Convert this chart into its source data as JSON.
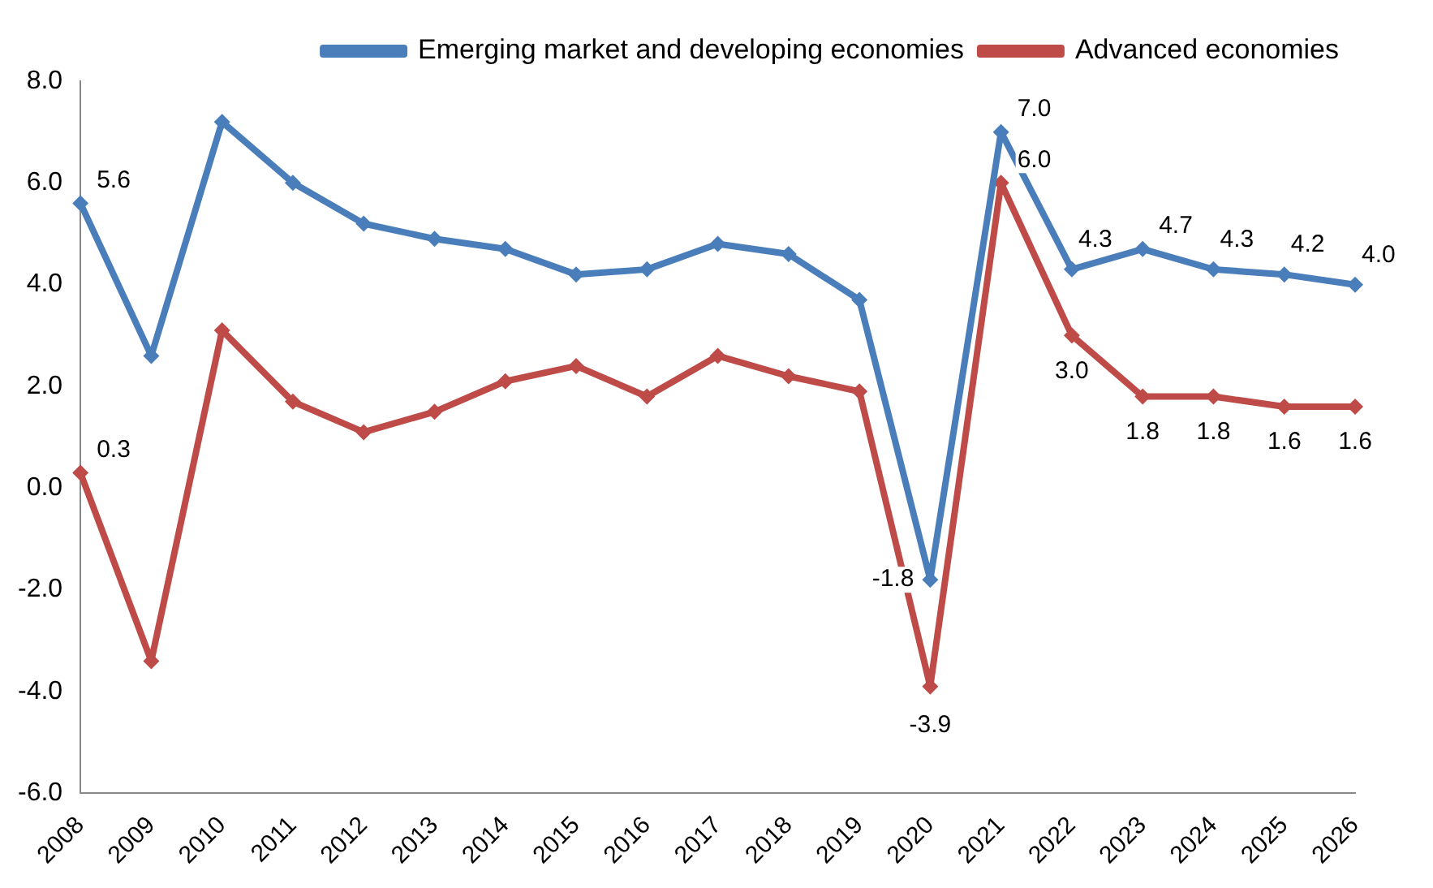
{
  "chart_data": {
    "type": "line",
    "categories": [
      "2008",
      "2009",
      "2010",
      "2011",
      "2012",
      "2013",
      "2014",
      "2015",
      "2016",
      "2017",
      "2018",
      "2019",
      "2020",
      "2021",
      "2022",
      "2023",
      "2024",
      "2025",
      "2026"
    ],
    "series": [
      {
        "name": "Emerging market and developing economies",
        "color": "#4a7ebb",
        "values": [
          5.6,
          2.6,
          7.2,
          6.0,
          5.2,
          4.9,
          4.7,
          4.2,
          4.3,
          4.8,
          4.6,
          3.7,
          -1.8,
          7.0,
          4.3,
          4.7,
          4.3,
          4.2,
          4.0
        ],
        "value_labels": [
          "5.6",
          null,
          null,
          null,
          null,
          null,
          null,
          null,
          null,
          null,
          null,
          null,
          "-1.8",
          "7.0",
          "4.3",
          "4.7",
          "4.3",
          "4.2",
          "4.0"
        ]
      },
      {
        "name": "Advanced economies",
        "color": "#be4b48",
        "values": [
          0.3,
          -3.4,
          3.1,
          1.7,
          1.1,
          1.5,
          2.1,
          2.4,
          1.8,
          2.6,
          2.2,
          1.9,
          -3.9,
          6.0,
          3.0,
          1.8,
          1.8,
          1.6,
          1.6
        ],
        "value_labels": [
          "0.3",
          null,
          null,
          null,
          null,
          null,
          null,
          null,
          null,
          null,
          null,
          null,
          "-3.9",
          "6.0",
          "3.0",
          "1.8",
          "1.8",
          "1.6",
          "1.6"
        ]
      }
    ],
    "ylim": [
      -6,
      8
    ],
    "yticks": [
      {
        "value": -6,
        "label": "-6.0"
      },
      {
        "value": -4,
        "label": "-4.0"
      },
      {
        "value": -2,
        "label": "-2.0"
      },
      {
        "value": 0,
        "label": "0.0"
      },
      {
        "value": 2,
        "label": "2.0"
      },
      {
        "value": 4,
        "label": "4.0"
      },
      {
        "value": 6,
        "label": "6.0"
      },
      {
        "value": 8,
        "label": "8.0"
      }
    ],
    "grid": false,
    "legend": "top right",
    "marker": "diamond",
    "line_style": "solid"
  }
}
